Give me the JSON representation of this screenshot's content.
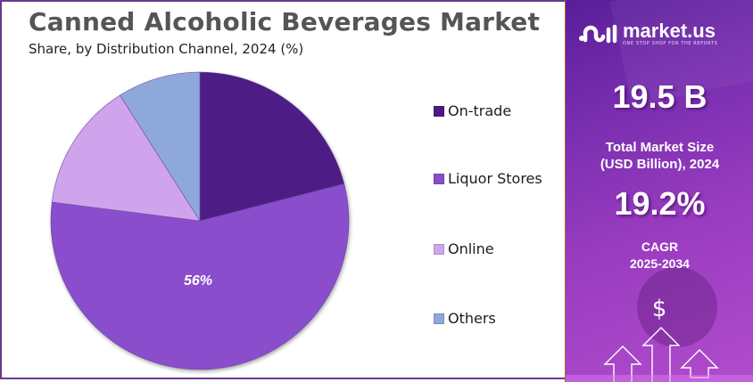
{
  "header": {
    "title": "Canned Alcoholic Beverages Market",
    "subtitle": "Share, by Distribution Channel, 2024 (%)"
  },
  "chart_data": {
    "type": "pie",
    "title": "Canned Alcoholic Beverages Market",
    "subtitle": "Share, by Distribution Channel, 2024 (%)",
    "categories": [
      "On-trade",
      "Liquor Stores",
      "Online",
      "Others"
    ],
    "values": [
      21,
      56,
      14,
      9
    ],
    "colors": [
      "#4e1a84",
      "#8a4ecb",
      "#d0a4ec",
      "#8fa8dc"
    ],
    "data_labels": [
      null,
      "56%",
      null,
      null
    ],
    "start_angle_deg": 0,
    "direction": "clockwise",
    "legend_position": "right"
  },
  "legend": {
    "items": [
      {
        "label": "On-trade",
        "color": "#4e1a84"
      },
      {
        "label": "Liquor Stores",
        "color": "#8a4ecb"
      },
      {
        "label": "Online",
        "color": "#d0a4ec"
      },
      {
        "label": "Others",
        "color": "#8fa8dc"
      }
    ]
  },
  "side_panel": {
    "brand_name": "market.us",
    "brand_tagline": "ONE STOP SHOP FOR THE REPORTS",
    "market_size_value": "19.5 B",
    "market_size_label_line1": "Total Market Size",
    "market_size_label_line2": "(USD Billion), 2024",
    "cagr_value": "19.2%",
    "cagr_label_line1": "CAGR",
    "cagr_label_line2": "2025-2034",
    "dollar_symbol": "$"
  }
}
